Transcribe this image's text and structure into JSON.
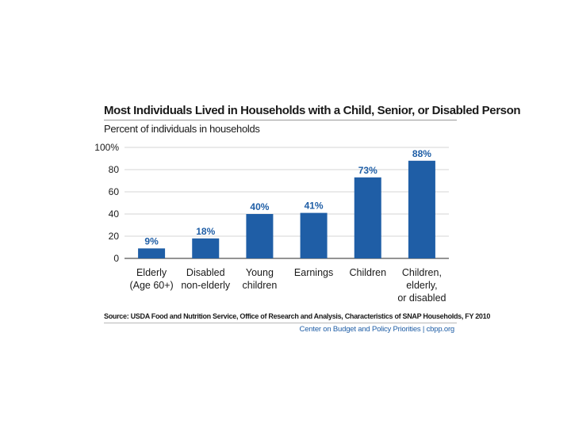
{
  "chart_data": {
    "type": "bar",
    "title": "Most Individuals Lived in Households with a Child, Senior, or Disabled Person",
    "subtitle": "Percent of individuals in households",
    "categories": [
      [
        "Elderly",
        "(Age 60+)"
      ],
      [
        "Disabled",
        "non-elderly"
      ],
      [
        "Young",
        "children"
      ],
      [
        "Earnings"
      ],
      [
        "Children"
      ],
      [
        "Children,",
        "elderly,",
        "or disabled"
      ]
    ],
    "values": [
      9,
      18,
      40,
      41,
      73,
      88
    ],
    "value_labels": [
      "9%",
      "18%",
      "40%",
      "41%",
      "73%",
      "88%"
    ],
    "ylim": [
      0,
      100
    ],
    "yticks": [
      0,
      20,
      40,
      60,
      80,
      100
    ],
    "ytick_labels": [
      "0",
      "20",
      "40",
      "60",
      "80",
      "100%"
    ],
    "xlabel": "",
    "ylabel": "",
    "grid": true,
    "bar_color": "#1f5ea6",
    "label_color": "#1f5ea6",
    "grid_color": "#c8c8c8",
    "source": "Source: USDA Food and Nutrition Service, Office of Research and Analysis, Characteristics of SNAP Households, FY 2010",
    "credit": "Center on Budget and Policy Priorities | cbpp.org"
  }
}
